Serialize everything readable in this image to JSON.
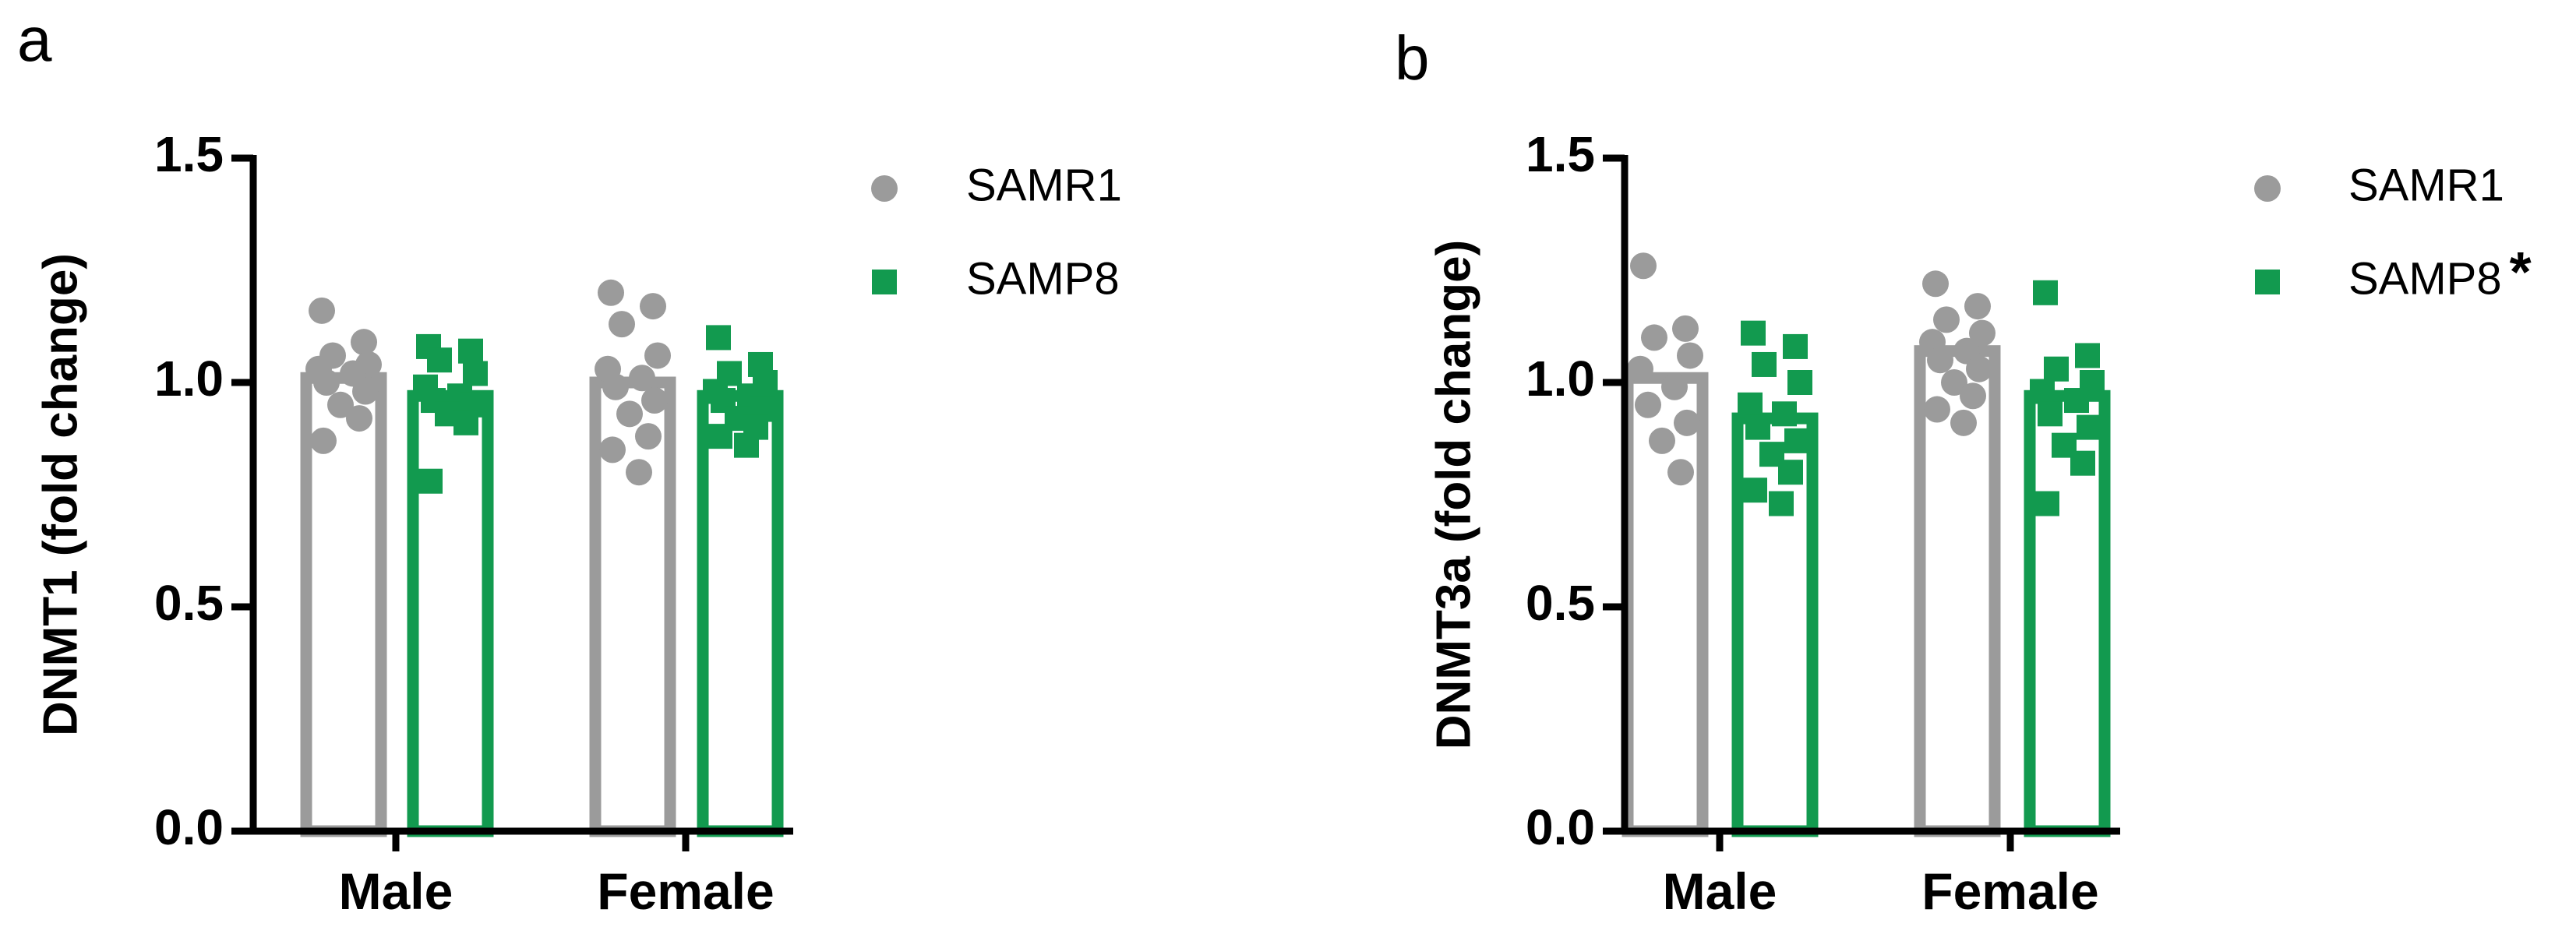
{
  "chart_data": [
    {
      "panel_label": "a",
      "type": "bar",
      "categories": [
        "Male",
        "Female"
      ],
      "ylabel": "DNMT1 (fold change)",
      "ylim": [
        0,
        1.5
      ],
      "yticks": [
        "0.0",
        "0.5",
        "1.0",
        "1.5"
      ],
      "grid": false,
      "legend_placement": "right",
      "legend": [
        {
          "label": "SAMR1",
          "marker": "circle",
          "color": "#9b9b9b",
          "mark": ""
        },
        {
          "label": "SAMP8",
          "marker": "square",
          "color": "#129a4f",
          "mark": ""
        }
      ],
      "series": [
        {
          "name": "SAMR1",
          "color": "#9b9b9b",
          "marker": "circle",
          "values": [
            1.01,
            1.0
          ],
          "points": [
            [
              1.16,
              1.09,
              1.06,
              1.04,
              1.03,
              1.02,
              1.0,
              0.98,
              0.95,
              0.92,
              0.87
            ],
            [
              1.2,
              1.17,
              1.13,
              1.06,
              1.03,
              1.01,
              0.99,
              0.96,
              0.93,
              0.88,
              0.85,
              0.8
            ]
          ]
        },
        {
          "name": "SAMP8",
          "color": "#129a4f",
          "marker": "square",
          "values": [
            0.97,
            0.97
          ],
          "points": [
            [
              1.08,
              1.07,
              1.05,
              1.02,
              0.99,
              0.97,
              0.96,
              0.95,
              0.93,
              0.91,
              0.78
            ],
            [
              1.1,
              1.04,
              1.02,
              1.0,
              0.98,
              0.97,
              0.96,
              0.94,
              0.92,
              0.9,
              0.88,
              0.86
            ]
          ]
        }
      ]
    },
    {
      "panel_label": "b",
      "type": "bar",
      "categories": [
        "Male",
        "Female"
      ],
      "ylabel": "DNMT3a (fold change)",
      "ylim": [
        0,
        1.5
      ],
      "yticks": [
        "0.0",
        "0.5",
        "1.0",
        "1.5"
      ],
      "grid": false,
      "legend_placement": "right",
      "legend": [
        {
          "label": "SAMR1",
          "marker": "circle",
          "color": "#9b9b9b",
          "mark": ""
        },
        {
          "label": "SAMP8",
          "marker": "square",
          "color": "#129a4f",
          "mark": "*"
        }
      ],
      "series": [
        {
          "name": "SAMR1",
          "color": "#9b9b9b",
          "marker": "circle",
          "values": [
            1.01,
            1.07
          ],
          "points": [
            [
              1.26,
              1.12,
              1.1,
              1.06,
              1.03,
              0.99,
              0.95,
              0.91,
              0.87,
              0.8
            ],
            [
              1.22,
              1.17,
              1.14,
              1.11,
              1.09,
              1.07,
              1.05,
              1.03,
              1.0,
              0.97,
              0.94,
              0.91
            ]
          ]
        },
        {
          "name": "SAMP8",
          "color": "#129a4f",
          "marker": "square",
          "values": [
            0.92,
            0.97
          ],
          "points": [
            [
              1.11,
              1.08,
              1.04,
              1.0,
              0.95,
              0.93,
              0.9,
              0.87,
              0.84,
              0.8,
              0.76,
              0.73
            ],
            [
              1.2,
              1.06,
              1.03,
              1.0,
              0.98,
              0.96,
              0.93,
              0.9,
              0.86,
              0.82,
              0.73
            ]
          ]
        }
      ]
    }
  ]
}
